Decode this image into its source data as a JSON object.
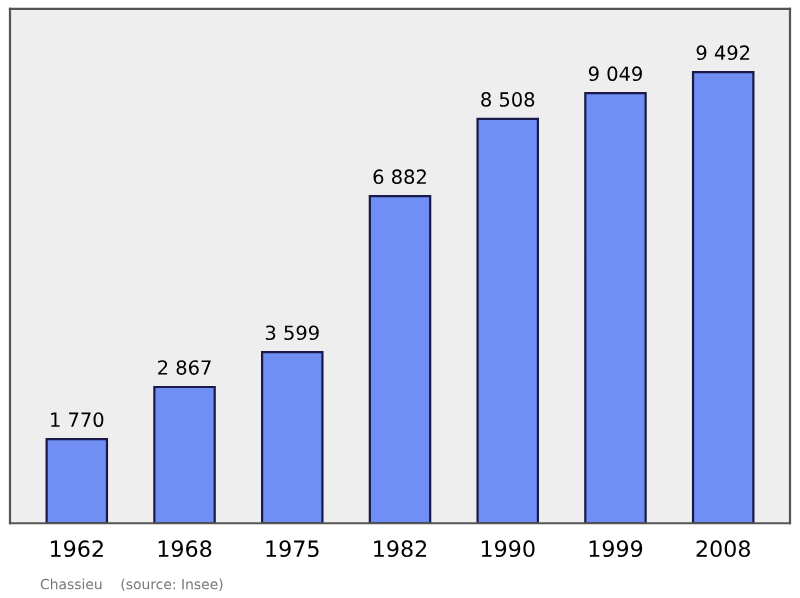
{
  "chart_data": {
    "type": "bar",
    "categories": [
      "1962",
      "1968",
      "1975",
      "1982",
      "1990",
      "1999",
      "2008"
    ],
    "values": [
      1770,
      2867,
      3599,
      6882,
      8508,
      9049,
      9492
    ],
    "value_labels": [
      "1 770",
      "2 867",
      "3 599",
      "6 882",
      "8 508",
      "9 049",
      "9 492"
    ],
    "color": "#6f8ff5",
    "annotations": [
      "Chassieu    (source: Insee)"
    ],
    "grid": false,
    "legend": false
  }
}
